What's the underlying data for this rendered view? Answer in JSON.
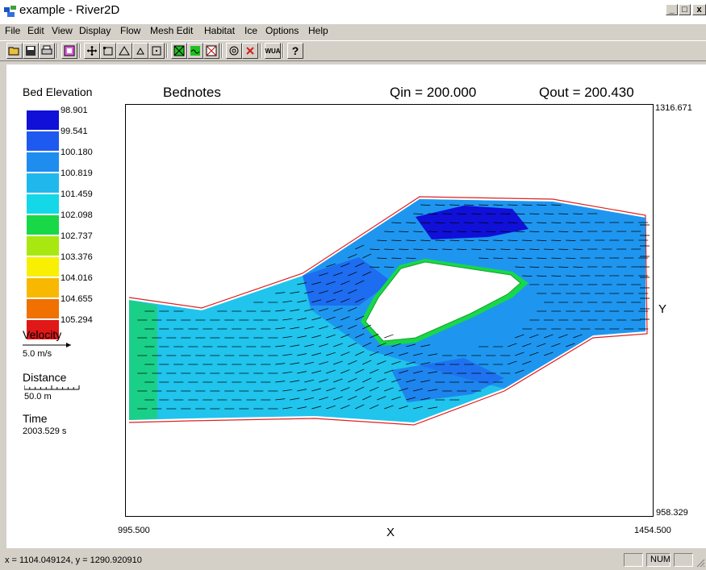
{
  "window": {
    "title": "example - River2D"
  },
  "window_controls": {
    "minimize": "_",
    "maximize": "□",
    "close": "x"
  },
  "menu": [
    "File",
    "Edit",
    "View",
    "Display",
    "Flow",
    "Mesh Edit",
    "Habitat",
    "Ice",
    "Options",
    "Help"
  ],
  "toolbar": {
    "buttons": [
      "open-icon",
      "save-icon",
      "print-icon",
      "zoom-icon",
      "move-icon",
      "node-icon",
      "triangle-icon",
      "small-triangle-icon",
      "boundary-icon",
      "mesh-icon",
      "contour-icon",
      "grid-icon",
      "target-icon",
      "marker-icon",
      "wua-icon",
      "help-icon"
    ],
    "wua_label": "WUA",
    "help_label": "?"
  },
  "plot": {
    "title": "Bednotes",
    "qin": "Qin = 200.000",
    "qout": "Qout = 200.430",
    "ymax": "1316.671",
    "ymin": "958.329",
    "xmin": "995.500",
    "xmax": "1454.500",
    "xlabel": "X",
    "ylabel": "Y"
  },
  "legend": {
    "title": "Bed Elevation",
    "values": [
      "98.901",
      "99.541",
      "100.180",
      "100.819",
      "101.459",
      "102.098",
      "102.737",
      "103.376",
      "104.016",
      "104.655",
      "105.294"
    ],
    "colors": [
      "#1010d8",
      "#1e5af0",
      "#1f8cf0",
      "#20b8ec",
      "#14d8e8",
      "#18d848",
      "#a8e810",
      "#f8f000",
      "#f8b800",
      "#f07000",
      "#e01818"
    ],
    "velocity_label": "Velocity",
    "velocity_value": "5.0 m/s",
    "distance_label": "Distance",
    "distance_value": "50.0 m",
    "time_label": "Time",
    "time_value": "2003.529 s"
  },
  "status": {
    "coords": "x = 1104.049124, y = 1290.920910",
    "num": "NUM"
  }
}
